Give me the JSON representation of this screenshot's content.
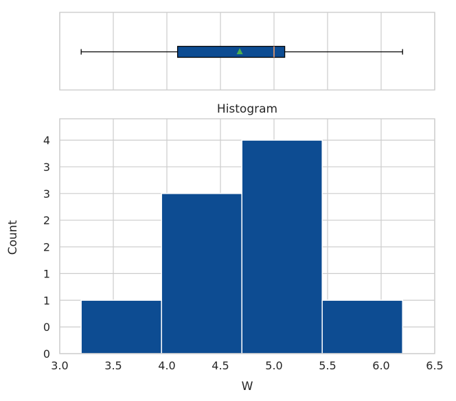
{
  "chart_data": {
    "type": "bar",
    "subtype": "histogram with boxplot",
    "title": "Histogram",
    "xlabel": "W",
    "ylabel": "Count",
    "xlim": [
      3.0,
      6.5
    ],
    "ylim": [
      0,
      4.4
    ],
    "x_ticks": [
      3.0,
      3.5,
      4.0,
      4.5,
      5.0,
      5.5,
      6.0,
      6.5
    ],
    "x_tick_labels": [
      "3.0",
      "3.5",
      "4.0",
      "4.5",
      "5.0",
      "5.5",
      "6.0",
      "6.5"
    ],
    "y_ticks": [
      0,
      0.5,
      1,
      1.5,
      2,
      2.5,
      3,
      3.5,
      4
    ],
    "y_tick_labels": [
      "0",
      "0",
      "1",
      "1",
      "2",
      "2",
      "3",
      "3",
      "4"
    ],
    "bins": [
      {
        "x0": 3.2,
        "x1": 3.95,
        "count": 1
      },
      {
        "x0": 3.95,
        "x1": 4.7,
        "count": 3
      },
      {
        "x0": 4.7,
        "x1": 5.45,
        "count": 4
      },
      {
        "x0": 5.45,
        "x1": 6.2,
        "count": 1
      }
    ],
    "boxplot": {
      "min": 3.2,
      "q1": 4.1,
      "median": 5.0,
      "mean": 4.68,
      "q3": 5.1,
      "max": 6.2
    },
    "grid": true,
    "colors": {
      "bar": "#0d4c92",
      "median": "#f39c6b",
      "mean": "#4caf50",
      "grid": "#cccccc",
      "text": "#262626"
    }
  }
}
